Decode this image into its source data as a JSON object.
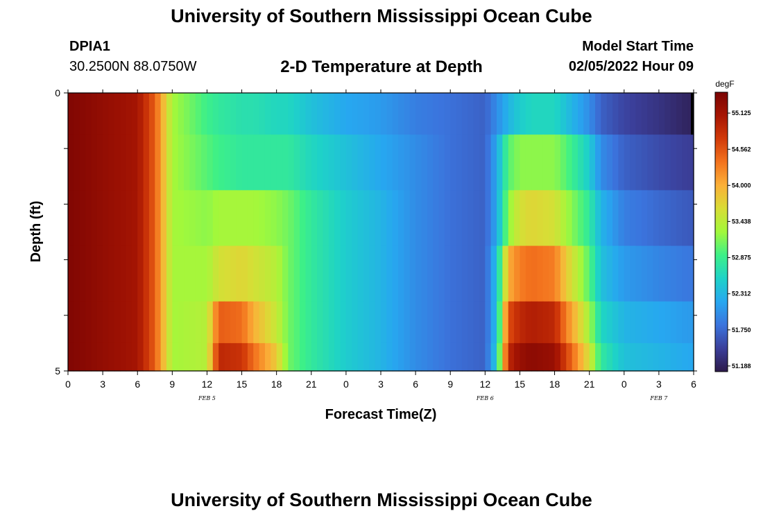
{
  "header": {
    "title": "University of Southern Mississippi Ocean Cube",
    "station_id": "DPIA1",
    "coords": "30.2500N  88.0750W",
    "plot_title": "2-D Temperature at Depth",
    "start_label": "Model Start Time",
    "start_value": "02/05/2022 Hour 09"
  },
  "footer": {
    "title": "University of Southern Mississippi Ocean Cube"
  },
  "colors": {
    "scale": [
      "#2d1a4a",
      "#3b3f9a",
      "#3b74dd",
      "#27a7f0",
      "#1ed2c8",
      "#3df088",
      "#a2f83b",
      "#d8dd36",
      "#fbb038",
      "#f3731e",
      "#d23a09",
      "#a61503",
      "#7a0403"
    ]
  },
  "chart_data": {
    "type": "heatmap",
    "xlabel": "Forecast Time(Z)",
    "ylabel": "Depth (ft)",
    "x_ticks": [
      "0",
      "3",
      "6",
      "9",
      "12",
      "15",
      "18",
      "21",
      "0",
      "3",
      "6",
      "9",
      "12",
      "15",
      "18",
      "21",
      "0",
      "3",
      "6"
    ],
    "date_labels": [
      {
        "label": "FEB 5",
        "hour": 12
      },
      {
        "label": "FEB 6",
        "hour": 36
      },
      {
        "label": "FEB 7",
        "hour": 51
      }
    ],
    "xlim": [
      0,
      54
    ],
    "y_ticks": [
      "0",
      "5"
    ],
    "ylim": [
      0,
      5
    ],
    "depth_levels": [
      0.25,
      1.25,
      2.25,
      3.25,
      4.25,
      4.75
    ],
    "colorbar": {
      "unit": "degF",
      "ticks": [
        "55.125",
        "54.562",
        "54.000",
        "53.438",
        "52.875",
        "52.312",
        "51.750",
        "51.188"
      ],
      "range": [
        51.1,
        55.45
      ]
    },
    "key_hours": [
      0,
      6,
      7.5,
      9,
      12,
      13,
      15,
      16,
      18,
      19,
      21,
      24,
      27,
      30,
      33,
      36,
      37,
      38,
      39,
      40,
      42,
      43,
      45,
      46,
      48,
      51,
      53.5
    ],
    "series": [
      {
        "name": "0",
        "values": [
          55.4,
          55.1,
          54.5,
          53.3,
          52.9,
          52.8,
          52.7,
          52.7,
          52.6,
          52.6,
          52.4,
          52.2,
          52.1,
          51.9,
          51.8,
          51.7,
          52.0,
          52.3,
          52.5,
          52.6,
          52.6,
          52.4,
          52.0,
          51.7,
          51.5,
          51.35,
          51.2
        ]
      },
      {
        "name": "1",
        "values": [
          55.4,
          55.1,
          54.5,
          53.3,
          53.0,
          52.9,
          52.8,
          52.8,
          52.8,
          52.8,
          52.6,
          52.4,
          52.2,
          52.0,
          51.8,
          51.7,
          52.2,
          53.0,
          53.2,
          53.2,
          53.2,
          53.0,
          52.5,
          52.0,
          51.7,
          51.55,
          51.45
        ]
      },
      {
        "name": "2",
        "values": [
          55.4,
          55.1,
          54.5,
          53.3,
          53.2,
          53.3,
          53.3,
          53.3,
          53.2,
          53.1,
          52.8,
          52.5,
          52.3,
          52.0,
          51.8,
          51.7,
          52.2,
          53.2,
          53.6,
          53.7,
          53.6,
          53.3,
          52.8,
          52.3,
          51.9,
          51.75,
          51.65
        ]
      },
      {
        "name": "3",
        "values": [
          55.4,
          55.1,
          54.5,
          53.3,
          53.3,
          53.6,
          53.7,
          53.6,
          53.4,
          53.1,
          52.8,
          52.5,
          52.3,
          52.0,
          51.8,
          51.7,
          52.4,
          54.0,
          54.3,
          54.4,
          54.3,
          53.8,
          53.0,
          52.4,
          52.1,
          51.95,
          51.85
        ]
      },
      {
        "name": "4",
        "values": [
          55.4,
          55.1,
          54.5,
          53.3,
          53.4,
          54.5,
          54.4,
          54.0,
          53.5,
          53.1,
          52.8,
          52.5,
          52.3,
          52.0,
          51.8,
          51.7,
          52.4,
          54.6,
          54.9,
          55.0,
          54.9,
          54.3,
          53.3,
          52.6,
          52.3,
          52.2,
          52.1
        ]
      },
      {
        "name": "5",
        "values": [
          55.4,
          55.1,
          54.5,
          53.3,
          53.4,
          54.9,
          54.8,
          54.4,
          53.8,
          53.1,
          52.8,
          52.5,
          52.3,
          52.0,
          51.8,
          51.7,
          52.5,
          54.9,
          55.2,
          55.3,
          55.2,
          54.7,
          53.6,
          52.8,
          52.4,
          52.3,
          52.2
        ]
      }
    ]
  }
}
